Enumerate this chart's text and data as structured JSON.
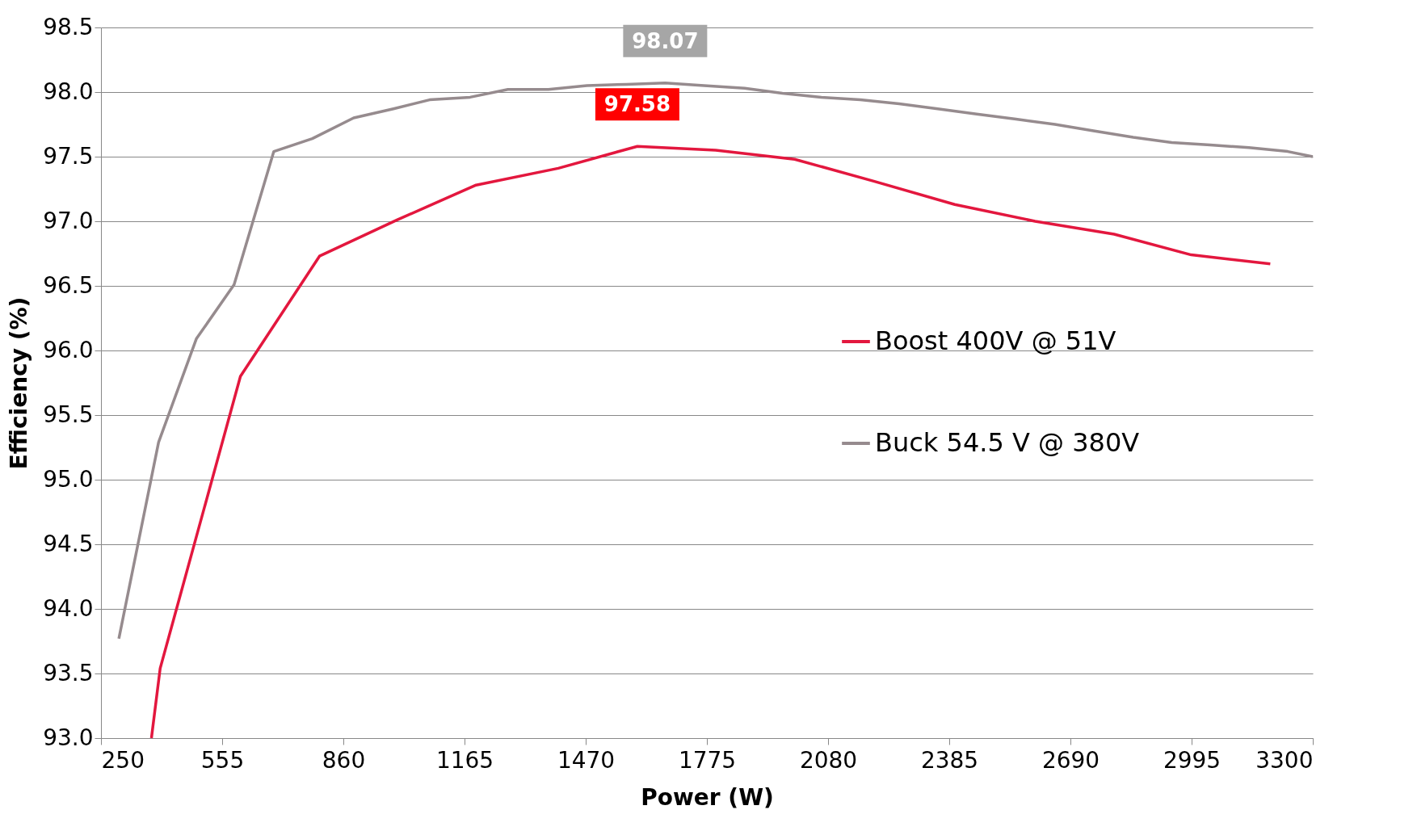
{
  "chart_data": {
    "type": "line",
    "xlabel": "Power (W)",
    "ylabel": "Efficiency (%)",
    "xlim": [
      250,
      3300
    ],
    "xticks": [
      250,
      555,
      860,
      1165,
      1470,
      1775,
      2080,
      2385,
      2690,
      2995,
      3300
    ],
    "ylim": [
      93,
      98.5
    ],
    "yticks": [
      {
        "value": 93,
        "label": "93.0"
      },
      {
        "value": 93.5,
        "label": "93.5"
      },
      {
        "value": 94,
        "label": "94.0"
      },
      {
        "value": 94.5,
        "label": "94.5"
      },
      {
        "value": 95,
        "label": "95.0"
      },
      {
        "value": 95.5,
        "label": "95.5"
      },
      {
        "value": 96,
        "label": "96.0"
      },
      {
        "value": 96.5,
        "label": "96.5"
      },
      {
        "value": 97,
        "label": "97.0"
      },
      {
        "value": 97.5,
        "label": "97.5"
      },
      {
        "value": 98,
        "label": "98.0"
      },
      {
        "value": 98.5,
        "label": "98.5"
      }
    ],
    "grid": "y",
    "legend": "right",
    "marker": "none",
    "line_style": "solid",
    "series": [
      {
        "name": "Boost 400V @ 51V",
        "color": "#e3173e",
        "x": [
          377,
          399,
          601,
          800,
          995,
          1194,
          1401,
          1600,
          1797,
          1996,
          2195,
          2399,
          2601,
          2800,
          2994,
          3193
        ],
        "values": [
          93.0,
          93.54,
          95.8,
          96.73,
          97.01,
          97.28,
          97.41,
          97.58,
          97.55,
          97.48,
          97.31,
          97.13,
          97.0,
          96.9,
          96.74,
          96.67
        ]
      },
      {
        "name": "Buck 54.5 V @ 380V",
        "color": "#968b8e",
        "x": [
          295,
          395,
          490,
          585,
          685,
          782,
          886,
          986,
          1077,
          1179,
          1274,
          1376,
          1473,
          1572,
          1670,
          1768,
          1870,
          1965,
          2063,
          2161,
          2259,
          2356,
          2454,
          2553,
          2651,
          2748,
          2848,
          2945,
          3042,
          3139,
          3237,
          3300
        ],
        "values": [
          93.77,
          95.29,
          96.09,
          96.51,
          97.54,
          97.64,
          97.8,
          97.87,
          97.94,
          97.96,
          98.02,
          98.02,
          98.05,
          98.06,
          98.07,
          98.05,
          98.03,
          97.99,
          97.96,
          97.94,
          97.91,
          97.87,
          97.83,
          97.79,
          97.75,
          97.7,
          97.65,
          97.61,
          97.59,
          97.57,
          97.54,
          97.5
        ]
      }
    ],
    "annotations": [
      {
        "text": "97.58",
        "x": 1600,
        "y": 97.58
      },
      {
        "text": "98.07",
        "x": 1670,
        "y": 98.07
      }
    ]
  }
}
